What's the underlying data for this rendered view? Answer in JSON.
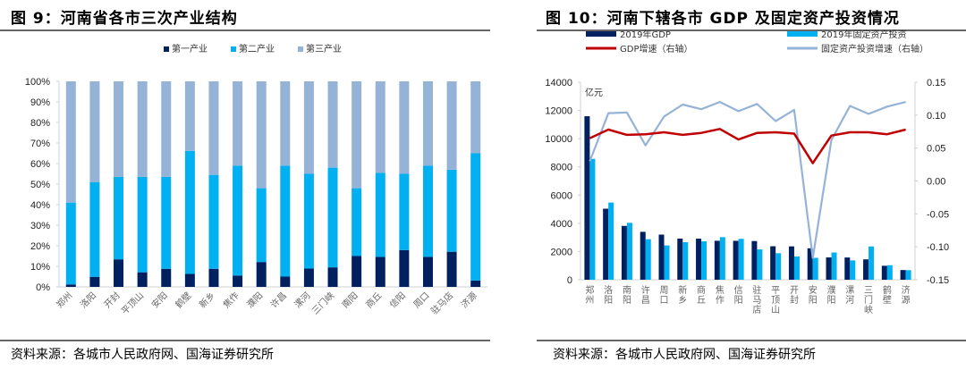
{
  "chart_data": [
    {
      "type": "bar",
      "stacked": true,
      "percent": true,
      "title": "图 9：河南省各市三次产业结构",
      "xlabel": "",
      "ylabel": "",
      "ylim": [
        0,
        100
      ],
      "yticks": [
        "0%",
        "10%",
        "20%",
        "30%",
        "40%",
        "50%",
        "60%",
        "70%",
        "80%",
        "90%",
        "100%"
      ],
      "grid": false,
      "legend_position": "top-center",
      "categories": [
        "郑州",
        "洛阳",
        "开封",
        "平顶山",
        "安阳",
        "鹤壁",
        "新乡",
        "焦作",
        "濮阳",
        "许昌",
        "漯河",
        "三门峡",
        "南阳",
        "商丘",
        "信阳",
        "周口",
        "驻马店",
        "济源"
      ],
      "series": [
        {
          "name": "第一产业",
          "color": "#002060",
          "values": [
            1.2,
            4.9,
            13.4,
            7.1,
            8.8,
            6.3,
            8.8,
            5.5,
            12.1,
            5.0,
            8.9,
            9.5,
            15.0,
            14.6,
            17.9,
            14.6,
            17.1,
            3.1
          ]
        },
        {
          "name": "第二产业",
          "color": "#00B0F0",
          "values": [
            39.8,
            46.1,
            40.1,
            46.4,
            44.7,
            59.9,
            45.7,
            53.5,
            35.9,
            54.0,
            46.1,
            48.5,
            33.0,
            40.9,
            37.1,
            44.4,
            39.9,
            61.9
          ]
        },
        {
          "name": "第三产业",
          "color": "#95B3D7",
          "values": [
            59.0,
            49.0,
            46.5,
            46.5,
            46.5,
            33.8,
            45.5,
            41.0,
            52.0,
            41.0,
            45.0,
            42.0,
            52.0,
            44.5,
            45.0,
            41.0,
            43.0,
            35.0
          ]
        }
      ]
    },
    {
      "type": "bar+line",
      "title": "图 10：河南下辖各市 GDP 及固定资产投资情况",
      "ylabel": "亿元",
      "ylim": [
        0,
        14000
      ],
      "yticks": [
        "0",
        "2000",
        "4000",
        "6000",
        "8000",
        "10000",
        "12000",
        "14000"
      ],
      "y2lim": [
        -0.15,
        0.15
      ],
      "y2ticks": [
        "-0.15",
        "-0.10",
        "-0.05",
        "0.00",
        "0.05",
        "0.10",
        "0.15"
      ],
      "grid": false,
      "legend_position": "top",
      "categories": [
        "郑州",
        "洛阳",
        "南阳",
        "许昌",
        "周口",
        "新乡",
        "商丘",
        "焦作",
        "信阳",
        "驻马店",
        "平顶山",
        "开封",
        "安阳",
        "濮阳",
        "漯河",
        "三门峡",
        "鹤壁",
        "济源"
      ],
      "series": [
        {
          "name": "2019年GDP",
          "kind": "bar",
          "axis": "left",
          "color": "#002060",
          "values": [
            11590,
            5035,
            3815,
            3395,
            3198,
            2918,
            2911,
            2761,
            2758,
            2742,
            2373,
            2364,
            2229,
            1581,
            1578,
            1443,
            989,
            686
          ]
        },
        {
          "name": "2019年固定资产投资",
          "kind": "bar",
          "axis": "left",
          "color": "#00B0F0",
          "values": [
            8570,
            5470,
            4035,
            2870,
            2430,
            2660,
            2720,
            3020,
            2900,
            2150,
            1880,
            1650,
            1550,
            1930,
            1370,
            2360,
            1030,
            680
          ]
        },
        {
          "name": "GDP增速（右轴）",
          "kind": "line",
          "axis": "right",
          "color": "#C00000",
          "values": [
            0.065,
            0.078,
            0.07,
            0.071,
            0.074,
            0.07,
            0.073,
            0.079,
            0.063,
            0.073,
            0.074,
            0.072,
            0.027,
            0.069,
            0.074,
            0.074,
            0.071,
            0.078
          ]
        },
        {
          "name": "固定资产投资增速（右轴）",
          "kind": "line",
          "axis": "right",
          "color": "#95B3D7",
          "values": [
            0.03,
            0.103,
            0.104,
            0.054,
            0.098,
            0.116,
            0.109,
            0.12,
            0.106,
            0.117,
            0.091,
            0.108,
            -0.117,
            0.062,
            0.114,
            0.102,
            0.113,
            0.12
          ]
        }
      ]
    }
  ],
  "left_panel": {
    "title": "图 9：河南省各市三次产业结构",
    "source": "资料来源：各城市人民政府网、国海证券研究所"
  },
  "right_panel": {
    "title": "图 10：河南下辖各市 GDP 及固定资产投资情况",
    "unit_label": "亿元",
    "source": "资料来源：各城市人民政府网、国海证券研究所"
  }
}
